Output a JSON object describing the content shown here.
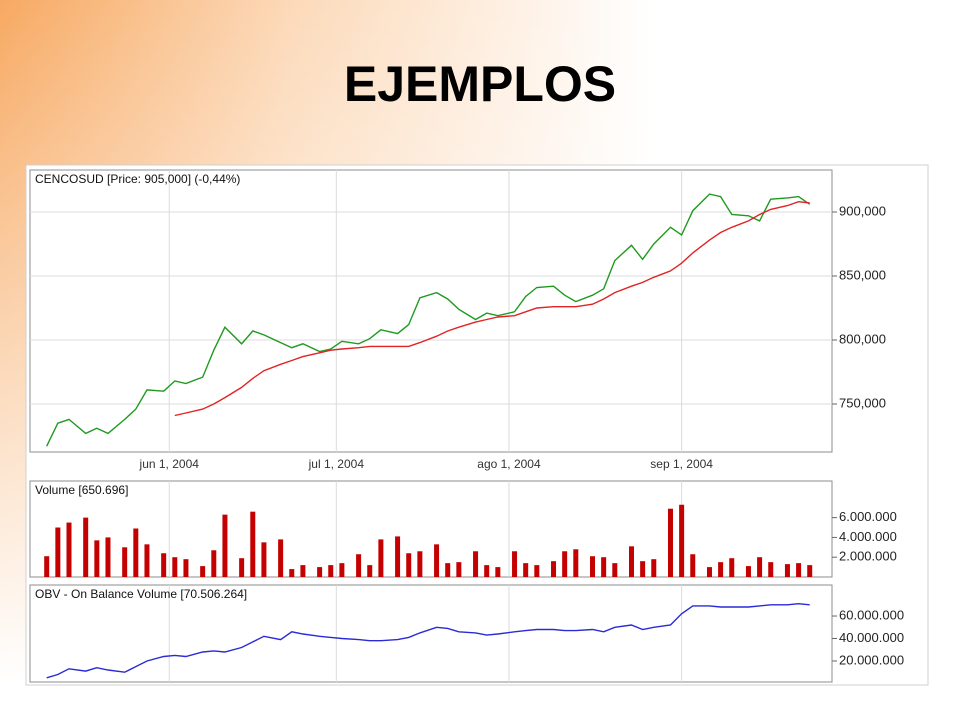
{
  "slide": {
    "title": "EJEMPLOS"
  },
  "chart_data": [
    {
      "type": "line",
      "title": "CENCOSUD [Price: 905,000] (-0,44%)",
      "x": [
        "2004-05-10",
        "2004-05-12",
        "2004-05-14",
        "2004-05-17",
        "2004-05-19",
        "2004-05-21",
        "2004-05-24",
        "2004-05-26",
        "2004-05-28",
        "2004-05-31",
        "2004-06-02",
        "2004-06-04",
        "2004-06-07",
        "2004-06-09",
        "2004-06-11",
        "2004-06-14",
        "2004-06-16",
        "2004-06-18",
        "2004-06-21",
        "2004-06-23",
        "2004-06-25",
        "2004-06-28",
        "2004-06-30",
        "2004-07-02",
        "2004-07-05",
        "2004-07-07",
        "2004-07-09",
        "2004-07-12",
        "2004-07-14",
        "2004-07-16",
        "2004-07-19",
        "2004-07-21",
        "2004-07-23",
        "2004-07-26",
        "2004-07-28",
        "2004-07-30",
        "2004-08-02",
        "2004-08-04",
        "2004-08-06",
        "2004-08-09",
        "2004-08-11",
        "2004-08-13",
        "2004-08-16",
        "2004-08-18",
        "2004-08-20",
        "2004-08-23",
        "2004-08-25",
        "2004-08-27",
        "2004-08-30",
        "2004-09-01",
        "2004-09-03",
        "2004-09-06",
        "2004-09-08",
        "2004-09-10",
        "2004-09-13",
        "2004-09-15",
        "2004-09-17",
        "2004-09-20",
        "2004-09-22",
        "2004-09-24"
      ],
      "series": [
        {
          "color": "#1f9a1f",
          "values": [
            717000,
            735000,
            738000,
            727000,
            731000,
            727000,
            738000,
            746000,
            761000,
            760000,
            768000,
            766000,
            771000,
            792000,
            810000,
            797000,
            807000,
            804000,
            798000,
            794000,
            797000,
            791000,
            793000,
            799000,
            797000,
            801000,
            808000,
            805000,
            812000,
            833000,
            837000,
            832000,
            824000,
            816000,
            821000,
            819000,
            822000,
            834000,
            841000,
            842000,
            835000,
            830000,
            835000,
            840000,
            862000,
            874000,
            863000,
            875000,
            888000,
            882000,
            901000,
            914000,
            912000,
            898000,
            897000,
            893000,
            910000,
            911000,
            912000,
            906000
          ]
        },
        {
          "color": "#e02424",
          "values": [
            null,
            null,
            null,
            null,
            null,
            null,
            null,
            null,
            null,
            null,
            741000,
            743000,
            746000,
            750000,
            755000,
            763000,
            770000,
            776000,
            781000,
            784000,
            787000,
            790000,
            792000,
            793000,
            794000,
            795000,
            795000,
            795000,
            795000,
            798000,
            803000,
            807000,
            810000,
            814000,
            816000,
            818000,
            819000,
            822000,
            825000,
            826000,
            826000,
            826000,
            828000,
            832000,
            837000,
            842000,
            845000,
            849000,
            854000,
            860000,
            868000,
            878000,
            884000,
            888000,
            893000,
            898000,
            902000,
            905000,
            908000,
            907000
          ]
        }
      ],
      "xlim": [
        "2004-05-07",
        "2004-09-28"
      ],
      "xticks": [
        {
          "value": "2004-06-01",
          "label": "jun 1, 2004"
        },
        {
          "value": "2004-07-01",
          "label": "jul 1, 2004"
        },
        {
          "value": "2004-08-01",
          "label": "ago 1, 2004"
        },
        {
          "value": "2004-09-01",
          "label": "sep 1, 2004"
        }
      ],
      "ylim": [
        712500,
        932800
      ],
      "yticks": [
        {
          "value": 750000,
          "label": "750,000"
        },
        {
          "value": 800000,
          "label": "800,000"
        },
        {
          "value": 850000,
          "label": "850,000"
        },
        {
          "value": 900000,
          "label": "900,000"
        }
      ],
      "grid": true
    },
    {
      "type": "bar",
      "title": "Volume [650.696]",
      "color": "#c40000",
      "x": [
        "2004-05-10",
        "2004-05-12",
        "2004-05-14",
        "2004-05-17",
        "2004-05-19",
        "2004-05-21",
        "2004-05-24",
        "2004-05-26",
        "2004-05-28",
        "2004-05-31",
        "2004-06-02",
        "2004-06-04",
        "2004-06-07",
        "2004-06-09",
        "2004-06-11",
        "2004-06-14",
        "2004-06-16",
        "2004-06-18",
        "2004-06-21",
        "2004-06-23",
        "2004-06-25",
        "2004-06-28",
        "2004-06-30",
        "2004-07-02",
        "2004-07-05",
        "2004-07-07",
        "2004-07-09",
        "2004-07-12",
        "2004-07-14",
        "2004-07-16",
        "2004-07-19",
        "2004-07-21",
        "2004-07-23",
        "2004-07-26",
        "2004-07-28",
        "2004-07-30",
        "2004-08-02",
        "2004-08-04",
        "2004-08-06",
        "2004-08-09",
        "2004-08-11",
        "2004-08-13",
        "2004-08-16",
        "2004-08-18",
        "2004-08-20",
        "2004-08-23",
        "2004-08-25",
        "2004-08-27",
        "2004-08-30",
        "2004-09-01",
        "2004-09-03",
        "2004-09-06",
        "2004-09-08",
        "2004-09-10",
        "2004-09-13",
        "2004-09-15",
        "2004-09-17",
        "2004-09-20",
        "2004-09-22",
        "2004-09-24"
      ],
      "values": [
        2100000,
        5000000,
        5500000,
        6000000,
        3700000,
        4000000,
        3000000,
        4900000,
        3300000,
        2400000,
        2000000,
        1800000,
        1100000,
        2700000,
        6300000,
        1900000,
        6600000,
        3500000,
        3800000,
        800000,
        1200000,
        1000000,
        1200000,
        1400000,
        2300000,
        1200000,
        3800000,
        4100000,
        2400000,
        2600000,
        3300000,
        1400000,
        1500000,
        2600000,
        1200000,
        1000000,
        2600000,
        1400000,
        1200000,
        1600000,
        2600000,
        2800000,
        2100000,
        2000000,
        1400000,
        3100000,
        1600000,
        1800000,
        6900000,
        7300000,
        2300000,
        1000000,
        1500000,
        1900000,
        1100000,
        2000000,
        1500000,
        1300000,
        1400000,
        1200000
      ],
      "xlim": [
        "2004-05-07",
        "2004-09-28"
      ],
      "ylim": [
        0,
        9700000
      ],
      "yticks": [
        {
          "value": 2000000,
          "label": "2.000.000"
        },
        {
          "value": 4000000,
          "label": "4.000.000"
        },
        {
          "value": 6000000,
          "label": "6.000.000"
        }
      ]
    },
    {
      "type": "line",
      "title": "OBV - On Balance Volume [70.506.264]",
      "x": [
        "2004-05-10",
        "2004-05-12",
        "2004-05-14",
        "2004-05-17",
        "2004-05-19",
        "2004-05-21",
        "2004-05-24",
        "2004-05-26",
        "2004-05-28",
        "2004-05-31",
        "2004-06-02",
        "2004-06-04",
        "2004-06-07",
        "2004-06-09",
        "2004-06-11",
        "2004-06-14",
        "2004-06-16",
        "2004-06-18",
        "2004-06-21",
        "2004-06-23",
        "2004-06-25",
        "2004-06-28",
        "2004-06-30",
        "2004-07-02",
        "2004-07-05",
        "2004-07-07",
        "2004-07-09",
        "2004-07-12",
        "2004-07-14",
        "2004-07-16",
        "2004-07-19",
        "2004-07-21",
        "2004-07-23",
        "2004-07-26",
        "2004-07-28",
        "2004-07-30",
        "2004-08-02",
        "2004-08-04",
        "2004-08-06",
        "2004-08-09",
        "2004-08-11",
        "2004-08-13",
        "2004-08-16",
        "2004-08-18",
        "2004-08-20",
        "2004-08-23",
        "2004-08-25",
        "2004-08-27",
        "2004-08-30",
        "2004-09-01",
        "2004-09-03",
        "2004-09-06",
        "2004-09-08",
        "2004-09-10",
        "2004-09-13",
        "2004-09-15",
        "2004-09-17",
        "2004-09-20",
        "2004-09-22",
        "2004-09-24"
      ],
      "series": [
        {
          "color": "#2a2ad6",
          "values": [
            5000000,
            8000000,
            13000000,
            11000000,
            14000000,
            12000000,
            10000000,
            15000000,
            20000000,
            24000000,
            25000000,
            24000000,
            28000000,
            29000000,
            28000000,
            32000000,
            37000000,
            42000000,
            39000000,
            46000000,
            44000000,
            42000000,
            41000000,
            40000000,
            39000000,
            38000000,
            38000000,
            39000000,
            41000000,
            45000000,
            50000000,
            49000000,
            46000000,
            45000000,
            43000000,
            44000000,
            46000000,
            47000000,
            48000000,
            48000000,
            47000000,
            47000000,
            48000000,
            46000000,
            50000000,
            52000000,
            48000000,
            50000000,
            52000000,
            62000000,
            69000000,
            69000000,
            68000000,
            68000000,
            68000000,
            69000000,
            70000000,
            70000000,
            71000000,
            70000000
          ]
        }
      ],
      "xlim": [
        "2004-05-07",
        "2004-09-28"
      ],
      "ylim": [
        1300000,
        87600000
      ],
      "yticks": [
        {
          "value": 20000000,
          "label": "20.000.000"
        },
        {
          "value": 40000000,
          "label": "40.000.000"
        },
        {
          "value": 60000000,
          "label": "60.000.000"
        }
      ]
    }
  ]
}
